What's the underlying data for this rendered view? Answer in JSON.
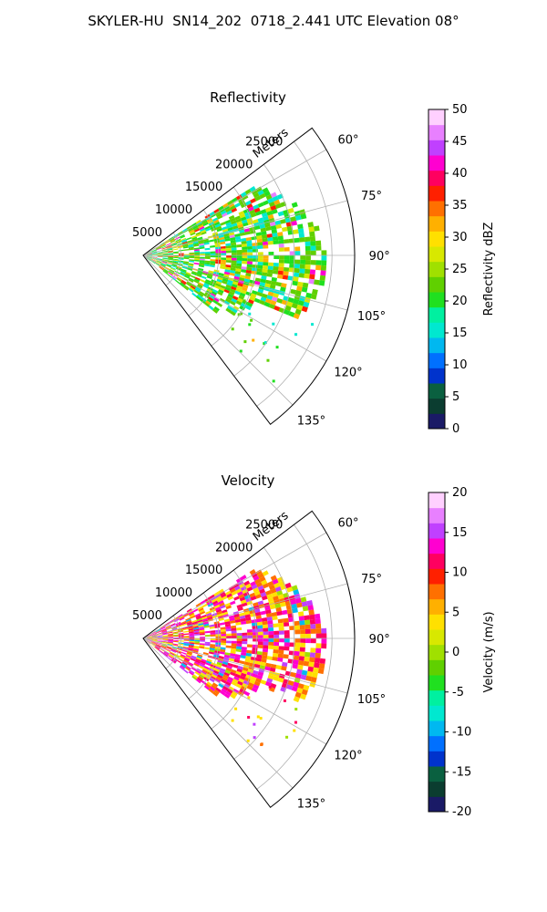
{
  "figure": {
    "title": "SKYLER-HU  SN14_202  0718_2.441 UTC Elevation 08°"
  },
  "chart_data": [
    {
      "type": "polar_sector",
      "title": "Reflectivity",
      "radial_label": "Meters",
      "radial_ticks": [
        5000,
        10000,
        15000,
        20000,
        25000
      ],
      "radial_range": [
        0,
        28000
      ],
      "angle_ticks": [
        "60°",
        "75°",
        "90°",
        "105°",
        "120°",
        "135°"
      ],
      "angle_tick_values": [
        60,
        75,
        90,
        105,
        120,
        135
      ],
      "angle_range": [
        53,
        143
      ],
      "grid": true,
      "colorbar": {
        "label": "Reflectivity dBZ",
        "range": [
          0,
          50
        ],
        "ticks": [
          0,
          5,
          10,
          15,
          20,
          25,
          30,
          35,
          40,
          45,
          50
        ],
        "colors": [
          "#1a1a66",
          "#0b3d30",
          "#0a6040",
          "#0033cc",
          "#0070ff",
          "#00b8f0",
          "#00e8d0",
          "#00f0a0",
          "#20e020",
          "#60d000",
          "#a0e000",
          "#d8e800",
          "#ffe000",
          "#ffb000",
          "#ff7000",
          "#ff2000",
          "#ff0060",
          "#ff00d0",
          "#c040ff",
          "#e880ff",
          "#ffd0ff"
        ]
      }
    },
    {
      "type": "polar_sector",
      "title": "Velocity",
      "radial_label": "Meters",
      "radial_ticks": [
        5000,
        10000,
        15000,
        20000,
        25000
      ],
      "radial_range": [
        0,
        28000
      ],
      "angle_ticks": [
        "60°",
        "75°",
        "90°",
        "105°",
        "120°",
        "135°"
      ],
      "angle_tick_values": [
        60,
        75,
        90,
        105,
        120,
        135
      ],
      "angle_range": [
        53,
        143
      ],
      "grid": true,
      "colorbar": {
        "label": "Velocity (m/s)",
        "range": [
          -20,
          20
        ],
        "ticks": [
          -20,
          -15,
          -10,
          -5,
          0,
          5,
          10,
          15,
          20
        ],
        "colors": [
          "#1a1a66",
          "#0b3d30",
          "#0a6040",
          "#0033cc",
          "#0070ff",
          "#00b8f0",
          "#00e8d0",
          "#00f0a0",
          "#20e020",
          "#60d000",
          "#a0e000",
          "#d8e800",
          "#ffe000",
          "#ffb000",
          "#ff7000",
          "#ff2000",
          "#ff0060",
          "#ff00d0",
          "#c040ff",
          "#e880ff",
          "#ffd0ff"
        ]
      }
    }
  ]
}
